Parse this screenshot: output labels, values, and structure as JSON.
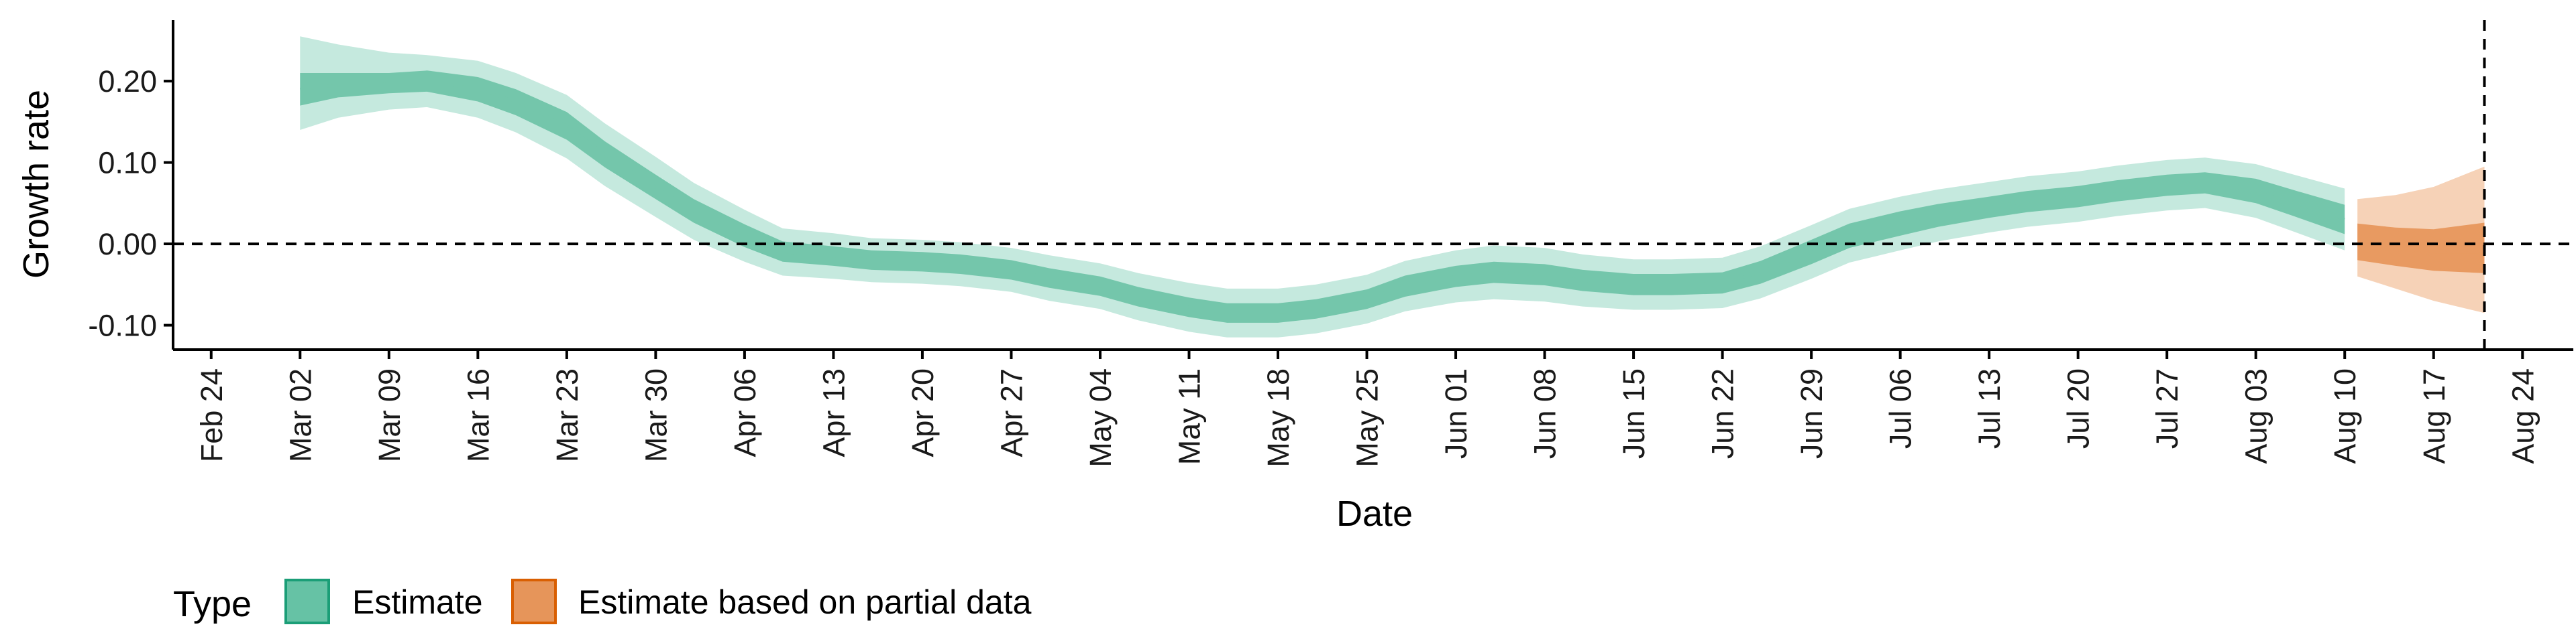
{
  "chart_data": {
    "type": "area",
    "xlabel": "Date",
    "ylabel": "Growth rate",
    "x_axis_type": "date",
    "xlim": [
      "2020-02-21",
      "2020-08-28"
    ],
    "ylim": [
      -0.13,
      0.275
    ],
    "x_ticks": [
      "2020-02-24",
      "2020-03-02",
      "2020-03-09",
      "2020-03-16",
      "2020-03-23",
      "2020-03-30",
      "2020-04-06",
      "2020-04-13",
      "2020-04-20",
      "2020-04-27",
      "2020-05-04",
      "2020-05-11",
      "2020-05-18",
      "2020-05-25",
      "2020-06-01",
      "2020-06-08",
      "2020-06-15",
      "2020-06-22",
      "2020-06-29",
      "2020-07-06",
      "2020-07-13",
      "2020-07-20",
      "2020-07-27",
      "2020-08-03",
      "2020-08-10",
      "2020-08-17",
      "2020-08-24"
    ],
    "x_tick_labels": [
      "Feb 24",
      "Mar 02",
      "Mar 09",
      "Mar 16",
      "Mar 23",
      "Mar 30",
      "Apr 06",
      "Apr 13",
      "Apr 20",
      "Apr 27",
      "May 04",
      "May 11",
      "May 18",
      "May 25",
      "Jun 01",
      "Jun 08",
      "Jun 15",
      "Jun 22",
      "Jun 29",
      "Jul 06",
      "Jul 13",
      "Jul 20",
      "Jul 27",
      "Aug 03",
      "Aug 10",
      "Aug 17",
      "Aug 24"
    ],
    "y_ticks": [
      -0.1,
      0.0,
      0.1,
      0.2
    ],
    "y_tick_labels": [
      "-0.10",
      "0.00",
      "0.10",
      "0.20"
    ],
    "reference_lines": {
      "horizontal_y": 0.0,
      "vertical_x": "2020-08-21",
      "style": "dashed"
    },
    "grid": false,
    "legend": {
      "title": "Type",
      "position": "bottom-left",
      "entries": [
        {
          "label": "Estimate",
          "fill": "#66C2A5",
          "border": "#1B9E77"
        },
        {
          "label": "Estimate based on partial data",
          "fill": "#E6955A",
          "border": "#D95F02"
        }
      ]
    },
    "series": [
      {
        "name": "Estimate",
        "color": "#1B9E77",
        "x": [
          "2020-03-02",
          "2020-03-05",
          "2020-03-09",
          "2020-03-12",
          "2020-03-16",
          "2020-03-19",
          "2020-03-23",
          "2020-03-26",
          "2020-03-30",
          "2020-04-02",
          "2020-04-06",
          "2020-04-09",
          "2020-04-13",
          "2020-04-16",
          "2020-04-20",
          "2020-04-23",
          "2020-04-27",
          "2020-04-30",
          "2020-05-04",
          "2020-05-07",
          "2020-05-11",
          "2020-05-14",
          "2020-05-18",
          "2020-05-21",
          "2020-05-25",
          "2020-05-28",
          "2020-06-01",
          "2020-06-04",
          "2020-06-08",
          "2020-06-11",
          "2020-06-15",
          "2020-06-18",
          "2020-06-22",
          "2020-06-25",
          "2020-06-29",
          "2020-07-02",
          "2020-07-06",
          "2020-07-09",
          "2020-07-13",
          "2020-07-16",
          "2020-07-20",
          "2020-07-23",
          "2020-07-27",
          "2020-07-30",
          "2020-08-03",
          "2020-08-06",
          "2020-08-10"
        ],
        "median": [
          0.19,
          0.195,
          0.2,
          0.2,
          0.19,
          0.175,
          0.145,
          0.11,
          0.07,
          0.04,
          0.01,
          -0.01,
          -0.015,
          -0.02,
          -0.022,
          -0.025,
          -0.032,
          -0.042,
          -0.052,
          -0.065,
          -0.078,
          -0.085,
          -0.085,
          -0.08,
          -0.068,
          -0.052,
          -0.04,
          -0.035,
          -0.038,
          -0.045,
          -0.05,
          -0.05,
          -0.048,
          -0.035,
          -0.01,
          0.01,
          0.025,
          0.035,
          0.045,
          0.052,
          0.058,
          0.065,
          0.072,
          0.075,
          0.065,
          0.05,
          0.03
        ],
        "inner": [
          [
            0.17,
            0.21
          ],
          [
            0.18,
            0.21
          ],
          [
            0.185,
            0.21
          ],
          [
            0.187,
            0.213
          ],
          [
            0.175,
            0.205
          ],
          [
            0.158,
            0.19
          ],
          [
            0.128,
            0.162
          ],
          [
            0.094,
            0.126
          ],
          [
            0.055,
            0.085
          ],
          [
            0.026,
            0.055
          ],
          [
            -0.004,
            0.024
          ],
          [
            -0.022,
            0.003
          ],
          [
            -0.027,
            -0.003
          ],
          [
            -0.032,
            -0.008
          ],
          [
            -0.034,
            -0.01
          ],
          [
            -0.037,
            -0.013
          ],
          [
            -0.044,
            -0.02
          ],
          [
            -0.054,
            -0.03
          ],
          [
            -0.064,
            -0.04
          ],
          [
            -0.077,
            -0.053
          ],
          [
            -0.09,
            -0.066
          ],
          [
            -0.097,
            -0.073
          ],
          [
            -0.097,
            -0.073
          ],
          [
            -0.092,
            -0.068
          ],
          [
            -0.08,
            -0.056
          ],
          [
            -0.065,
            -0.039
          ],
          [
            -0.053,
            -0.027
          ],
          [
            -0.048,
            -0.022
          ],
          [
            -0.051,
            -0.025
          ],
          [
            -0.058,
            -0.032
          ],
          [
            -0.063,
            -0.037
          ],
          [
            -0.063,
            -0.037
          ],
          [
            -0.061,
            -0.035
          ],
          [
            -0.049,
            -0.021
          ],
          [
            -0.025,
            0.005
          ],
          [
            -0.005,
            0.025
          ],
          [
            0.01,
            0.04
          ],
          [
            0.021,
            0.049
          ],
          [
            0.032,
            0.058
          ],
          [
            0.039,
            0.065
          ],
          [
            0.045,
            0.071
          ],
          [
            0.052,
            0.078
          ],
          [
            0.059,
            0.085
          ],
          [
            0.062,
            0.088
          ],
          [
            0.05,
            0.08
          ],
          [
            0.034,
            0.066
          ],
          [
            0.012,
            0.048
          ]
        ],
        "outer": [
          [
            0.14,
            0.255
          ],
          [
            0.155,
            0.245
          ],
          [
            0.165,
            0.235
          ],
          [
            0.168,
            0.232
          ],
          [
            0.155,
            0.225
          ],
          [
            0.137,
            0.21
          ],
          [
            0.105,
            0.183
          ],
          [
            0.071,
            0.148
          ],
          [
            0.033,
            0.107
          ],
          [
            0.005,
            0.075
          ],
          [
            -0.022,
            0.042
          ],
          [
            -0.039,
            0.019
          ],
          [
            -0.043,
            0.013
          ],
          [
            -0.047,
            0.007
          ],
          [
            -0.049,
            0.005
          ],
          [
            -0.052,
            0.002
          ],
          [
            -0.059,
            -0.005
          ],
          [
            -0.07,
            -0.014
          ],
          [
            -0.08,
            -0.024
          ],
          [
            -0.094,
            -0.036
          ],
          [
            -0.108,
            -0.048
          ],
          [
            -0.115,
            -0.055
          ],
          [
            -0.115,
            -0.055
          ],
          [
            -0.11,
            -0.05
          ],
          [
            -0.098,
            -0.038
          ],
          [
            -0.083,
            -0.021
          ],
          [
            -0.072,
            -0.008
          ],
          [
            -0.068,
            -0.002
          ],
          [
            -0.071,
            -0.005
          ],
          [
            -0.077,
            -0.013
          ],
          [
            -0.081,
            -0.019
          ],
          [
            -0.081,
            -0.019
          ],
          [
            -0.079,
            -0.017
          ],
          [
            -0.067,
            -0.003
          ],
          [
            -0.043,
            0.023
          ],
          [
            -0.023,
            0.043
          ],
          [
            -0.008,
            0.058
          ],
          [
            0.003,
            0.067
          ],
          [
            0.014,
            0.076
          ],
          [
            0.021,
            0.083
          ],
          [
            0.027,
            0.089
          ],
          [
            0.034,
            0.096
          ],
          [
            0.041,
            0.103
          ],
          [
            0.044,
            0.106
          ],
          [
            0.032,
            0.098
          ],
          [
            0.015,
            0.085
          ],
          [
            -0.008,
            0.068
          ]
        ]
      },
      {
        "name": "Estimate based on partial data",
        "color": "#D95F02",
        "x": [
          "2020-08-11",
          "2020-08-14",
          "2020-08-17",
          "2020-08-21"
        ],
        "median": [
          0.0,
          -0.005,
          -0.01,
          -0.01
        ],
        "inner": [
          [
            -0.02,
            0.025
          ],
          [
            -0.027,
            0.02
          ],
          [
            -0.033,
            0.018
          ],
          [
            -0.036,
            0.026
          ]
        ],
        "outer": [
          [
            -0.04,
            0.055
          ],
          [
            -0.055,
            0.06
          ],
          [
            -0.07,
            0.07
          ],
          [
            -0.085,
            0.095
          ]
        ]
      }
    ]
  }
}
